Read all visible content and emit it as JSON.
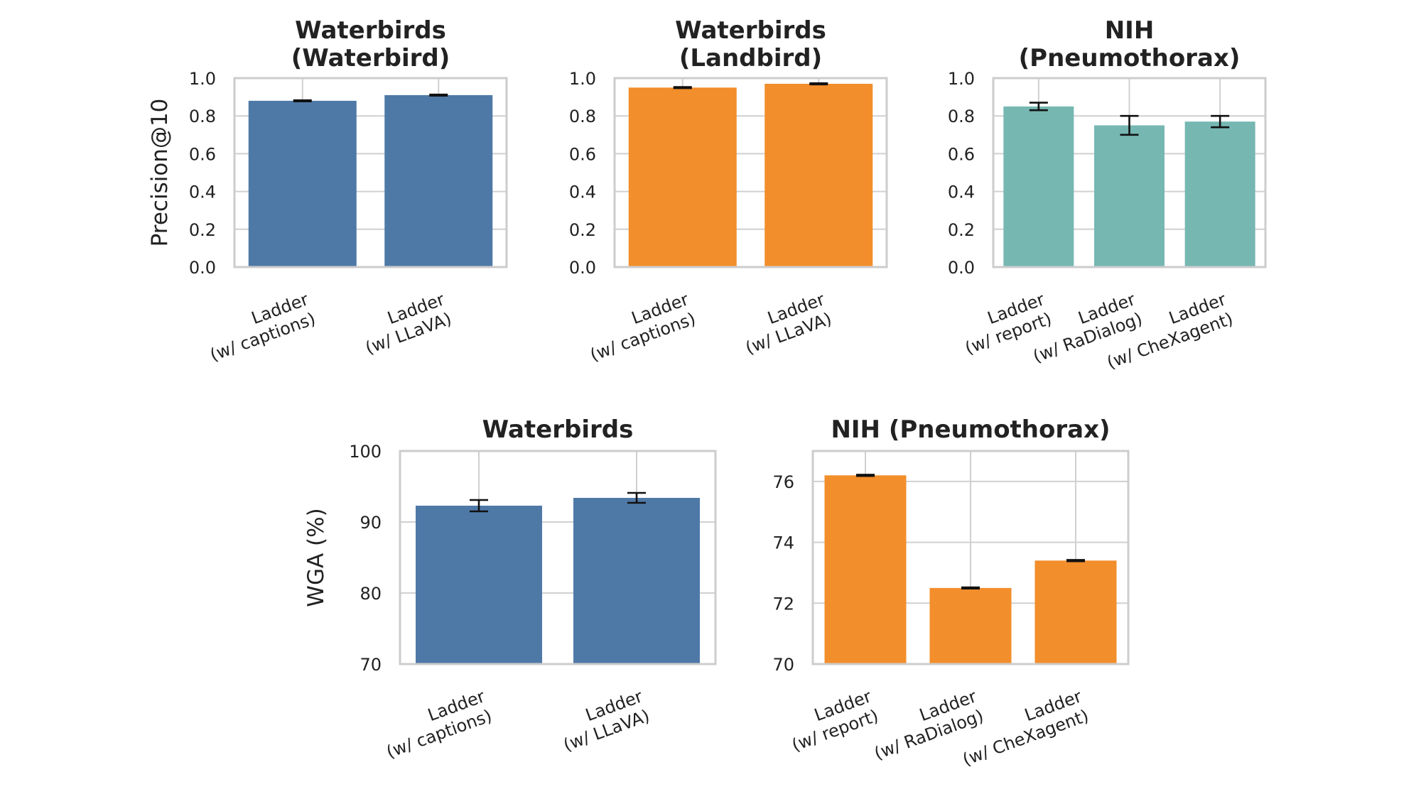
{
  "chart_data": [
    {
      "type": "bar",
      "title": [
        "Waterbirds",
        "(Waterbird)"
      ],
      "ylabel": "Precision@10",
      "ylim": [
        0,
        1.0
      ],
      "yticks": [
        "0.0",
        "0.2",
        "0.4",
        "0.6",
        "0.8",
        "1.0"
      ],
      "categories": [
        [
          "Ladder",
          "(w/ captions)"
        ],
        [
          "Ladder",
          "(w/ LLaVA)"
        ]
      ],
      "values": [
        0.88,
        0.91
      ],
      "errors": [
        0.003,
        0.003
      ],
      "color": "#4e79a7"
    },
    {
      "type": "bar",
      "title": [
        "Waterbirds",
        "(Landbird)"
      ],
      "ylabel": "",
      "ylim": [
        0,
        1.0
      ],
      "yticks": [
        "0.0",
        "0.2",
        "0.4",
        "0.6",
        "0.8",
        "1.0"
      ],
      "categories": [
        [
          "Ladder",
          "(w/ captions)"
        ],
        [
          "Ladder",
          "(w/ LLaVA)"
        ]
      ],
      "values": [
        0.95,
        0.97
      ],
      "errors": [
        0.003,
        0.003
      ],
      "color": "#f28e2b"
    },
    {
      "type": "bar",
      "title": [
        "NIH",
        "(Pneumothorax)"
      ],
      "ylabel": "",
      "ylim": [
        0,
        1.0
      ],
      "yticks": [
        "0.0",
        "0.2",
        "0.4",
        "0.6",
        "0.8",
        "1.0"
      ],
      "categories": [
        [
          "Ladder",
          "(w/ report)"
        ],
        [
          "Ladder",
          "(w/ RaDialog)"
        ],
        [
          "Ladder",
          "(w/ CheXagent)"
        ]
      ],
      "values": [
        0.85,
        0.75,
        0.77
      ],
      "errors": [
        0.02,
        0.05,
        0.03
      ],
      "color": "#76b7b2"
    },
    {
      "type": "bar",
      "title": [
        "Waterbirds"
      ],
      "ylabel": "WGA (%)",
      "ylim": [
        70,
        100
      ],
      "yticks": [
        "70",
        "80",
        "90",
        "100"
      ],
      "categories": [
        [
          "Ladder",
          "(w/ captions)"
        ],
        [
          "Ladder",
          "(w/ LLaVA)"
        ]
      ],
      "values": [
        92.3,
        93.4
      ],
      "errors": [
        0.8,
        0.7
      ],
      "color": "#4e79a7"
    },
    {
      "type": "bar",
      "title": [
        "NIH (Pneumothorax)"
      ],
      "ylabel": "",
      "ylim": [
        70,
        77
      ],
      "yticks": [
        "70",
        "72",
        "74",
        "76"
      ],
      "categories": [
        [
          "Ladder",
          "(w/ report)"
        ],
        [
          "Ladder",
          "(w/ RaDialog)"
        ],
        [
          "Ladder",
          "(w/ CheXagent)"
        ]
      ],
      "values": [
        76.2,
        72.5,
        73.4
      ],
      "errors": [
        0.02,
        0.02,
        0.02
      ],
      "color": "#f28e2b"
    }
  ]
}
